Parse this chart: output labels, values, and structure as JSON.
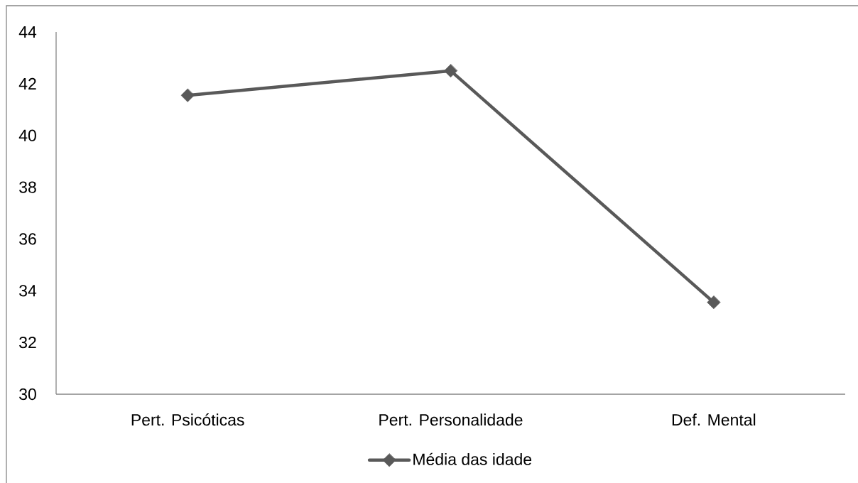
{
  "chart_data": {
    "type": "line",
    "categories": [
      "Pert. Psicóticas",
      "Pert. Personalidade",
      "Def. Mental"
    ],
    "series": [
      {
        "name": "Média das idade",
        "color": "#595959",
        "values": [
          41.55,
          42.5,
          33.55
        ]
      }
    ],
    "ylim": [
      30,
      44
    ],
    "yticks": [
      30,
      32,
      34,
      36,
      38,
      40,
      42,
      44
    ],
    "legend": "bottom",
    "marker": "diamond"
  }
}
